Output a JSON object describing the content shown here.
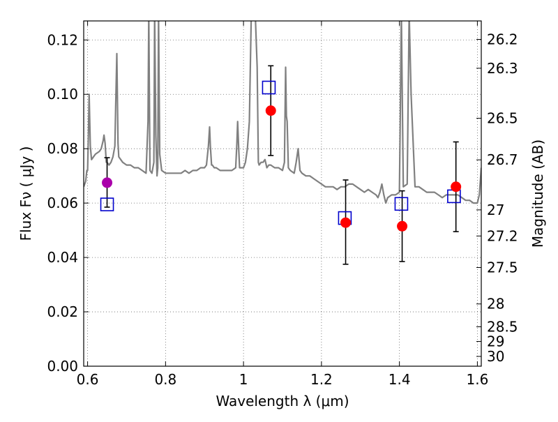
{
  "chart_data": {
    "type": "scatter",
    "xlabel": "Wavelength  λ (μm)",
    "ylabel": "Flux  Fν  ( μJy )",
    "y2label": "Magnitude (AB)",
    "xlim": [
      0.59,
      1.61
    ],
    "ylim": [
      0.0,
      0.127
    ],
    "grid": true,
    "x_ticks": [
      0.6,
      0.8,
      1.0,
      1.2,
      1.4,
      1.6
    ],
    "x_tick_labels": [
      "0.6",
      "0.8",
      "1",
      "1.2",
      "1.4",
      "1.6"
    ],
    "y_ticks": [
      0.0,
      0.02,
      0.04,
      0.06,
      0.08,
      0.1,
      0.12
    ],
    "y_tick_labels": [
      "0.00",
      "0.02",
      "0.04",
      "0.06",
      "0.08",
      "0.10",
      "0.12"
    ],
    "mag_ticks": [
      {
        "label": "26.2",
        "flux": 0.1202
      },
      {
        "label": "26.3",
        "flux": 0.1096
      },
      {
        "label": "26.5",
        "flux": 0.0912
      },
      {
        "label": "26.7",
        "flux": 0.0759
      },
      {
        "label": "27",
        "flux": 0.0575
      },
      {
        "label": "27.2",
        "flux": 0.0479
      },
      {
        "label": "27.5",
        "flux": 0.0363
      },
      {
        "label": "28",
        "flux": 0.0229
      },
      {
        "label": "28.5",
        "flux": 0.0145
      },
      {
        "label": "29",
        "flux": 0.0091
      },
      {
        "label": "30",
        "flux": 0.0036
      }
    ],
    "series": [
      {
        "kind": "spectrum",
        "color": "#808080",
        "x": [
          0.59,
          0.595,
          0.598,
          0.6,
          0.602,
          0.604,
          0.607,
          0.61,
          0.62,
          0.63,
          0.635,
          0.64,
          0.642,
          0.645,
          0.648,
          0.65,
          0.655,
          0.66,
          0.665,
          0.67,
          0.672,
          0.675,
          0.678,
          0.68,
          0.69,
          0.7,
          0.71,
          0.72,
          0.73,
          0.74,
          0.75,
          0.755,
          0.757,
          0.76,
          0.765,
          0.77,
          0.772,
          0.775,
          0.778,
          0.78,
          0.782,
          0.785,
          0.79,
          0.8,
          0.81,
          0.82,
          0.83,
          0.84,
          0.85,
          0.86,
          0.87,
          0.88,
          0.89,
          0.9,
          0.905,
          0.91,
          0.913,
          0.915,
          0.918,
          0.92,
          0.925,
          0.93,
          0.94,
          0.95,
          0.96,
          0.97,
          0.98,
          0.983,
          0.985,
          0.988,
          0.99,
          1.0,
          1.005,
          1.01,
          1.015,
          1.02,
          1.03,
          1.035,
          1.038,
          1.04,
          1.045,
          1.05,
          1.055,
          1.06,
          1.065,
          1.07,
          1.08,
          1.09,
          1.1,
          1.105,
          1.108,
          1.11,
          1.112,
          1.115,
          1.12,
          1.13,
          1.135,
          1.14,
          1.145,
          1.15,
          1.16,
          1.17,
          1.18,
          1.19,
          1.2,
          1.21,
          1.22,
          1.23,
          1.24,
          1.25,
          1.26,
          1.27,
          1.28,
          1.29,
          1.3,
          1.31,
          1.32,
          1.33,
          1.34,
          1.345,
          1.35,
          1.355,
          1.36,
          1.365,
          1.37,
          1.38,
          1.39,
          1.4,
          1.402,
          1.405,
          1.41,
          1.42,
          1.425,
          1.43,
          1.44,
          1.45,
          1.46,
          1.47,
          1.48,
          1.49,
          1.5,
          1.51,
          1.52,
          1.53,
          1.54,
          1.55,
          1.56,
          1.57,
          1.58,
          1.59,
          1.6,
          1.605,
          1.61
        ],
        "y": [
          0.066,
          0.068,
          0.072,
          0.072,
          0.085,
          0.1,
          0.081,
          0.076,
          0.078,
          0.079,
          0.08,
          0.083,
          0.085,
          0.082,
          0.075,
          0.075,
          0.074,
          0.075,
          0.077,
          0.081,
          0.095,
          0.115,
          0.082,
          0.077,
          0.075,
          0.074,
          0.074,
          0.073,
          0.073,
          0.072,
          0.071,
          0.09,
          0.13,
          0.072,
          0.071,
          0.075,
          0.13,
          0.085,
          0.07,
          0.073,
          0.13,
          0.078,
          0.072,
          0.071,
          0.071,
          0.071,
          0.071,
          0.071,
          0.072,
          0.071,
          0.072,
          0.072,
          0.073,
          0.073,
          0.074,
          0.081,
          0.088,
          0.081,
          0.074,
          0.074,
          0.073,
          0.073,
          0.072,
          0.072,
          0.072,
          0.072,
          0.073,
          0.082,
          0.09,
          0.079,
          0.073,
          0.073,
          0.075,
          0.08,
          0.09,
          0.13,
          0.13,
          0.11,
          0.075,
          0.074,
          0.075,
          0.075,
          0.076,
          0.073,
          0.074,
          0.074,
          0.073,
          0.073,
          0.072,
          0.075,
          0.11,
          0.092,
          0.09,
          0.073,
          0.072,
          0.071,
          0.075,
          0.08,
          0.072,
          0.071,
          0.07,
          0.07,
          0.069,
          0.068,
          0.067,
          0.066,
          0.066,
          0.066,
          0.065,
          0.066,
          0.066,
          0.067,
          0.067,
          0.066,
          0.065,
          0.064,
          0.065,
          0.064,
          0.063,
          0.062,
          0.064,
          0.067,
          0.063,
          0.06,
          0.062,
          0.063,
          0.063,
          0.064,
          0.09,
          0.13,
          0.066,
          0.067,
          0.13,
          0.1,
          0.066,
          0.066,
          0.065,
          0.064,
          0.064,
          0.064,
          0.063,
          0.062,
          0.063,
          0.063,
          0.063,
          0.063,
          0.062,
          0.061,
          0.061,
          0.06,
          0.06,
          0.063,
          0.073
        ]
      },
      {
        "kind": "open-squares",
        "color": "#0000cc",
        "x": [
          0.65,
          1.065,
          1.26,
          1.405,
          1.54
        ],
        "y": [
          0.0595,
          0.1025,
          0.0545,
          0.0597,
          0.0625
        ]
      },
      {
        "kind": "filled-circles",
        "color": "#ff0000",
        "x": [
          1.07,
          1.262,
          1.407,
          1.545
        ],
        "y": [
          0.094,
          0.0528,
          0.0515,
          0.066
        ],
        "err": [
          [
            0.0775,
            0.1105
          ],
          [
            0.0375,
            0.0685
          ],
          [
            0.0385,
            0.0645
          ],
          [
            0.0495,
            0.0825
          ]
        ]
      },
      {
        "kind": "filled-circles",
        "color": "#aa00aa",
        "x": [
          0.65
        ],
        "y": [
          0.0675
        ],
        "err": [
          [
            0.0585,
            0.0767
          ]
        ]
      }
    ]
  }
}
